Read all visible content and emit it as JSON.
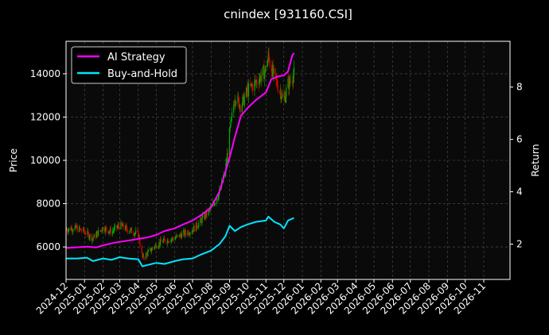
{
  "chart_data": {
    "type": "line",
    "title": "cnindex [931160.CSI]",
    "left_axis": {
      "label": "Price",
      "range": [
        4500,
        15500
      ],
      "ticks": [
        6000,
        8000,
        10000,
        12000,
        14000
      ],
      "tick_labels": [
        "6000",
        "8000",
        "10000",
        "12000",
        "14000"
      ]
    },
    "right_axis": {
      "label": "Return",
      "range": [
        0.65,
        9.75
      ],
      "ticks": [
        2,
        4,
        6,
        8
      ],
      "tick_labels": [
        "2",
        "4",
        "6",
        "8"
      ]
    },
    "x_axis": {
      "range": [
        "2024-12-01",
        "2026-12-15"
      ],
      "ticks": [
        "2024-12-01",
        "2025-01-01",
        "2025-02-01",
        "2025-03-01",
        "2025-04-01",
        "2025-05-01",
        "2025-06-01",
        "2025-07-01",
        "2025-08-01",
        "2025-09-01",
        "2025-10-01",
        "2025-11-01",
        "2025-12-01",
        "2026-01-01",
        "2026-02-01",
        "2026-03-01",
        "2026-04-01",
        "2026-05-01",
        "2026-06-01",
        "2026-07-01",
        "2026-08-01",
        "2026-09-01",
        "2026-10-01",
        "2026-11-01"
      ],
      "tick_labels": [
        "2024-12",
        "2025-01",
        "2025-02",
        "2025-03",
        "2025-04",
        "2025-05",
        "2025-06",
        "2025-07",
        "2025-08",
        "2025-09",
        "2025-10",
        "2025-11",
        "2025-12",
        "2026-01",
        "2026-02",
        "2026-03",
        "2026-04",
        "2026-05",
        "2026-06",
        "2026-07",
        "2026-08",
        "2026-09",
        "2026-10",
        "2026-11"
      ]
    },
    "grid": true,
    "legend": {
      "placement": "upper-left"
    },
    "series": [
      {
        "name": "AI Strategy",
        "axis": "right",
        "color": "#ff00ff",
        "points": [
          [
            "2024-12-01",
            1.85
          ],
          [
            "2024-12-20",
            1.88
          ],
          [
            "2025-01-05",
            1.9
          ],
          [
            "2025-01-20",
            1.87
          ],
          [
            "2025-02-01",
            1.95
          ],
          [
            "2025-02-20",
            2.05
          ],
          [
            "2025-03-05",
            2.1
          ],
          [
            "2025-03-20",
            2.15
          ],
          [
            "2025-04-01",
            2.2
          ],
          [
            "2025-04-15",
            2.25
          ],
          [
            "2025-05-01",
            2.35
          ],
          [
            "2025-05-15",
            2.5
          ],
          [
            "2025-06-01",
            2.6
          ],
          [
            "2025-06-15",
            2.75
          ],
          [
            "2025-07-01",
            2.9
          ],
          [
            "2025-07-15",
            3.1
          ],
          [
            "2025-08-01",
            3.4
          ],
          [
            "2025-08-15",
            4.0
          ],
          [
            "2025-09-01",
            5.3
          ],
          [
            "2025-09-10",
            6.1
          ],
          [
            "2025-09-20",
            6.9
          ],
          [
            "2025-10-01",
            7.2
          ],
          [
            "2025-10-15",
            7.5
          ],
          [
            "2025-11-01",
            7.8
          ],
          [
            "2025-11-10",
            8.3
          ],
          [
            "2025-11-20",
            8.4
          ],
          [
            "2025-12-01",
            8.45
          ],
          [
            "2025-12-08",
            8.6
          ],
          [
            "2025-12-15",
            9.2
          ],
          [
            "2025-12-18",
            9.3
          ]
        ]
      },
      {
        "name": "Buy-and-Hold",
        "axis": "right",
        "color": "#00e5ff",
        "points": [
          [
            "2024-12-01",
            1.45
          ],
          [
            "2024-12-20",
            1.45
          ],
          [
            "2025-01-05",
            1.48
          ],
          [
            "2025-01-15",
            1.35
          ],
          [
            "2025-02-01",
            1.45
          ],
          [
            "2025-02-15",
            1.4
          ],
          [
            "2025-03-01",
            1.5
          ],
          [
            "2025-03-15",
            1.45
          ],
          [
            "2025-04-01",
            1.42
          ],
          [
            "2025-04-08",
            1.15
          ],
          [
            "2025-04-20",
            1.22
          ],
          [
            "2025-05-01",
            1.28
          ],
          [
            "2025-05-15",
            1.24
          ],
          [
            "2025-06-01",
            1.35
          ],
          [
            "2025-06-15",
            1.42
          ],
          [
            "2025-07-01",
            1.45
          ],
          [
            "2025-07-15",
            1.6
          ],
          [
            "2025-08-01",
            1.75
          ],
          [
            "2025-08-15",
            2.0
          ],
          [
            "2025-08-25",
            2.3
          ],
          [
            "2025-09-01",
            2.7
          ],
          [
            "2025-09-10",
            2.5
          ],
          [
            "2025-09-20",
            2.65
          ],
          [
            "2025-10-01",
            2.75
          ],
          [
            "2025-10-15",
            2.85
          ],
          [
            "2025-11-01",
            2.9
          ],
          [
            "2025-11-05",
            3.05
          ],
          [
            "2025-11-15",
            2.85
          ],
          [
            "2025-11-25",
            2.75
          ],
          [
            "2025-12-01",
            2.6
          ],
          [
            "2025-12-08",
            2.9
          ],
          [
            "2025-12-18",
            3.0
          ]
        ]
      },
      {
        "name": "",
        "kind": "candlestick",
        "axis": "left",
        "up_color": "#00b000",
        "down_color": "#e00000",
        "close_points": [
          [
            "2024-12-01",
            6800
          ],
          [
            "2024-12-15",
            6900
          ],
          [
            "2025-01-01",
            6700
          ],
          [
            "2025-01-15",
            6400
          ],
          [
            "2025-02-01",
            6900
          ],
          [
            "2025-02-15",
            6700
          ],
          [
            "2025-03-01",
            7000
          ],
          [
            "2025-03-15",
            6800
          ],
          [
            "2025-04-01",
            6600
          ],
          [
            "2025-04-08",
            5500
          ],
          [
            "2025-04-20",
            5800
          ],
          [
            "2025-05-01",
            6100
          ],
          [
            "2025-05-15",
            6300
          ],
          [
            "2025-06-01",
            6400
          ],
          [
            "2025-06-15",
            6600
          ],
          [
            "2025-07-01",
            6800
          ],
          [
            "2025-07-15",
            7200
          ],
          [
            "2025-08-01",
            7800
          ],
          [
            "2025-08-15",
            8500
          ],
          [
            "2025-08-25",
            9500
          ],
          [
            "2025-09-01",
            11200
          ],
          [
            "2025-09-10",
            13000
          ],
          [
            "2025-09-20",
            12500
          ],
          [
            "2025-10-01",
            13200
          ],
          [
            "2025-10-15",
            13600
          ],
          [
            "2025-11-01",
            14200
          ],
          [
            "2025-11-05",
            14800
          ],
          [
            "2025-11-15",
            13800
          ],
          [
            "2025-11-25",
            13200
          ],
          [
            "2025-12-01",
            12800
          ],
          [
            "2025-12-08",
            13500
          ],
          [
            "2025-12-18",
            14000
          ]
        ]
      }
    ]
  }
}
